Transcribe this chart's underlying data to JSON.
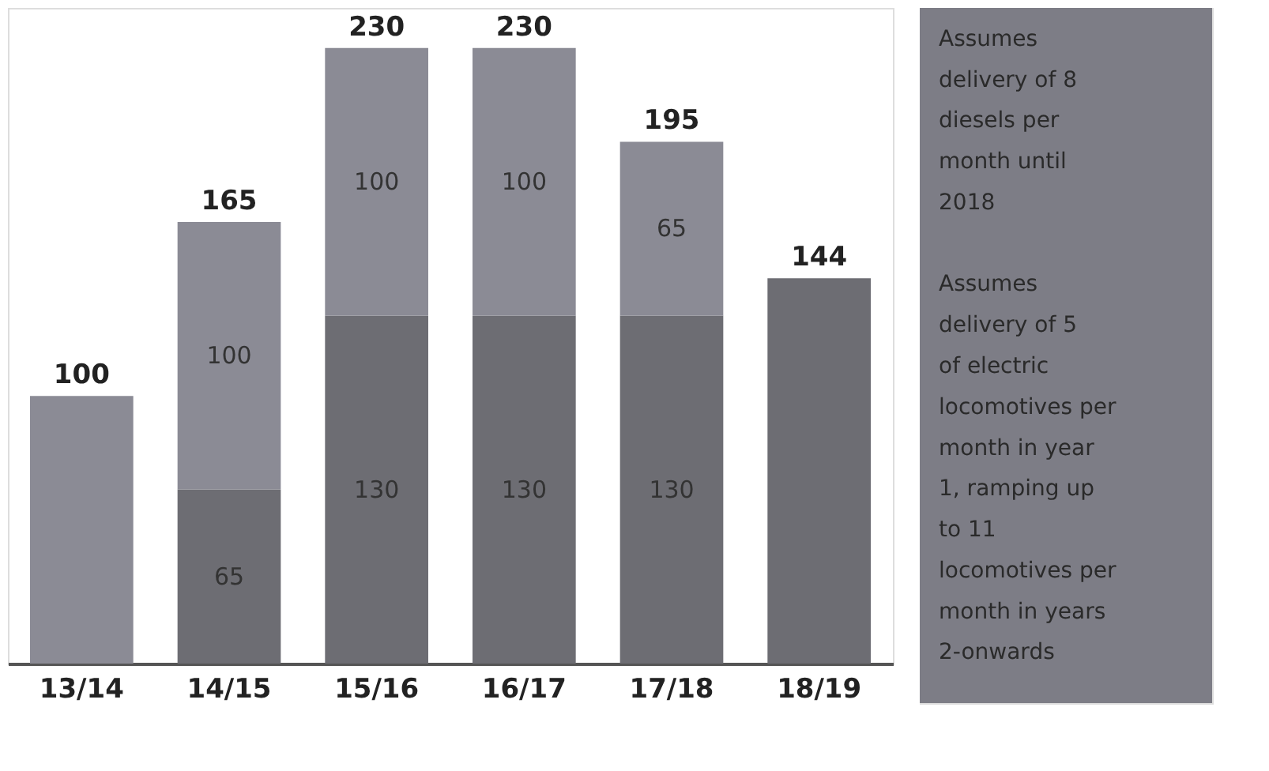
{
  "chart_data": {
    "type": "bar",
    "stacked": true,
    "categories": [
      "13/14",
      "14/15",
      "15/16",
      "16/17",
      "17/18",
      "18/19"
    ],
    "series": [
      {
        "color": "#6d6d73",
        "values": [
          0,
          65,
          130,
          130,
          130,
          144
        ],
        "value_labels": [
          null,
          "65",
          "130",
          "130",
          "130",
          null
        ]
      },
      {
        "color": "#8b8b95",
        "values": [
          100,
          100,
          100,
          100,
          65,
          0
        ],
        "value_labels": [
          null,
          "100",
          "100",
          "100",
          "65",
          null
        ]
      }
    ],
    "totals": [
      "100",
      "165",
      "230",
      "230",
      "195",
      "144"
    ],
    "ylim": [
      0,
      245
    ],
    "tick_labels": "x",
    "annotations": [
      "Assumes delivery of 8 diesels per month until 2018",
      "Assumes delivery of 5 of electric locomotives per month in year 1, ramping up to 11 locomotives per month in years 2-onwards"
    ]
  }
}
